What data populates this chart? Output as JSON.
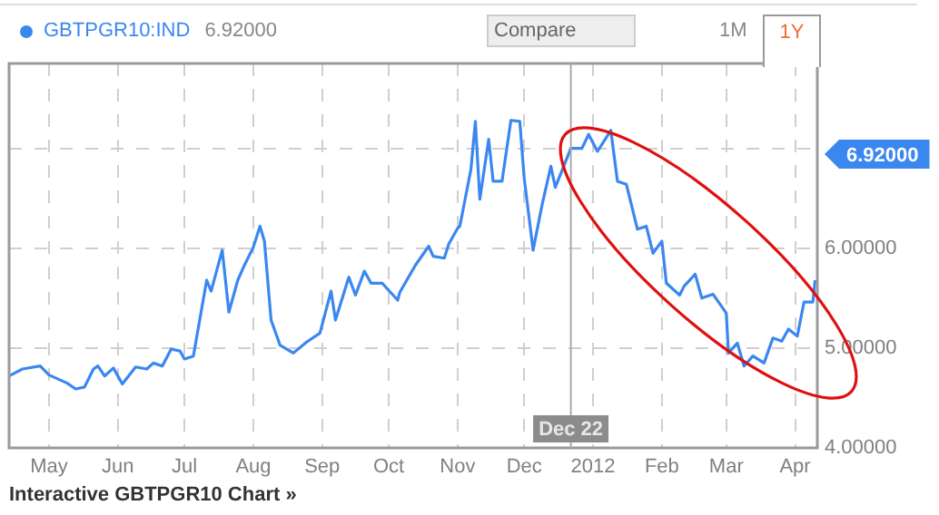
{
  "chart_data": {
    "type": "line",
    "legend": "top left",
    "grid": true,
    "marker": "none",
    "line_style": "solid",
    "x": [
      "2011-04-13",
      "2011-04-19",
      "2011-04-27",
      "2011-05-01",
      "2011-05-09",
      "2011-05-13",
      "2011-05-17",
      "2011-05-21",
      "2011-05-23",
      "2011-05-26",
      "2011-05-30",
      "2011-06-03",
      "2011-06-09",
      "2011-06-14",
      "2011-06-17",
      "2011-06-21",
      "2011-06-25",
      "2011-06-29",
      "2011-07-01",
      "2011-07-05",
      "2011-07-11",
      "2011-07-13",
      "2011-07-18",
      "2011-07-21",
      "2011-07-25",
      "2011-07-28",
      "2011-08-01",
      "2011-08-04",
      "2011-08-06",
      "2011-08-09",
      "2011-08-13",
      "2011-08-19",
      "2011-08-25",
      "2011-08-31",
      "2011-09-05",
      "2011-09-07",
      "2011-09-13",
      "2011-09-16",
      "2011-09-20",
      "2011-09-23",
      "2011-09-28",
      "2011-10-05",
      "2011-10-06",
      "2011-10-13",
      "2011-10-19",
      "2011-10-21",
      "2011-10-26",
      "2011-10-28",
      "2011-11-01",
      "2011-11-02",
      "2011-11-07",
      "2011-11-09",
      "2011-11-11",
      "2011-11-15",
      "2011-11-17",
      "2011-11-21",
      "2011-11-25",
      "2011-11-29",
      "2011-12-01",
      "2011-12-05",
      "2011-12-09",
      "2011-12-13",
      "2011-12-15",
      "2011-12-22",
      "2011-12-27",
      "2011-12-30",
      "2012-01-03",
      "2012-01-09",
      "2012-01-12",
      "2012-01-16",
      "2012-01-21",
      "2012-01-25",
      "2012-01-28",
      "2012-02-01",
      "2012-02-03",
      "2012-02-09",
      "2012-02-11",
      "2012-02-16",
      "2012-02-19",
      "2012-02-24",
      "2012-03-01",
      "2012-03-02",
      "2012-03-06",
      "2012-03-09",
      "2012-03-13",
      "2012-03-18",
      "2012-03-22",
      "2012-03-26",
      "2012-03-29",
      "2012-04-02",
      "2012-04-05",
      "2012-04-09",
      "2012-04-10"
    ],
    "series": [
      {
        "name": "GBTPGR10:IND",
        "color": "#3b87f0",
        "values": [
          4.72,
          4.79,
          4.82,
          4.73,
          4.65,
          4.59,
          4.61,
          4.79,
          4.82,
          4.72,
          4.8,
          4.64,
          4.81,
          4.79,
          4.85,
          4.82,
          4.99,
          4.97,
          4.89,
          4.92,
          5.68,
          5.57,
          5.98,
          5.36,
          5.68,
          5.83,
          6.01,
          6.22,
          6.07,
          5.28,
          5.03,
          4.95,
          5.06,
          5.15,
          5.57,
          5.28,
          5.71,
          5.53,
          5.77,
          5.65,
          5.65,
          5.48,
          5.56,
          5.83,
          6.02,
          5.92,
          5.9,
          6.04,
          6.2,
          6.22,
          6.79,
          7.27,
          6.49,
          7.09,
          6.67,
          6.67,
          7.28,
          7.27,
          6.7,
          5.98,
          6.43,
          6.82,
          6.61,
          7.0,
          7.0,
          7.14,
          6.97,
          7.18,
          6.67,
          6.64,
          6.19,
          6.22,
          5.95,
          6.07,
          5.65,
          5.53,
          5.62,
          5.74,
          5.5,
          5.54,
          5.35,
          4.95,
          5.05,
          4.82,
          4.92,
          4.85,
          5.1,
          5.07,
          5.19,
          5.12,
          5.46,
          5.46,
          5.68
        ]
      }
    ],
    "xlim": [
      "2011-04-13",
      "2012-04-11"
    ],
    "xticks": [
      {
        "value": "2011-05-01",
        "label": "May"
      },
      {
        "value": "2011-06-01",
        "label": "Jun"
      },
      {
        "value": "2011-07-01",
        "label": "Jul"
      },
      {
        "value": "2011-08-01",
        "label": "Aug"
      },
      {
        "value": "2011-09-01",
        "label": "Sep"
      },
      {
        "value": "2011-10-01",
        "label": "Oct"
      },
      {
        "value": "2011-11-01",
        "label": "Nov"
      },
      {
        "value": "2011-12-01",
        "label": "Dec"
      },
      {
        "value": "2012-01-01",
        "label": "2012"
      },
      {
        "value": "2012-02-01",
        "label": "Feb"
      },
      {
        "value": "2012-03-01",
        "label": "Mar"
      },
      {
        "value": "2012-04-01",
        "label": "Apr"
      }
    ],
    "ylim": [
      4,
      7.85
    ],
    "yticks": [
      {
        "value": 4,
        "label": "4.00000"
      },
      {
        "value": 5,
        "label": "5.00000"
      },
      {
        "value": 6,
        "label": "6.00000"
      },
      {
        "value": 7,
        "label": null
      }
    ],
    "ref_lines": [
      {
        "axis": "x",
        "value": "2011-12-22",
        "label": "Dec 22",
        "color": "#aaaaaa"
      }
    ],
    "annotations": [
      "6.92000",
      "Compare",
      "1M",
      "1Y",
      "Interactive GBTPGR10 Chart »",
      "6.92000"
    ]
  }
}
